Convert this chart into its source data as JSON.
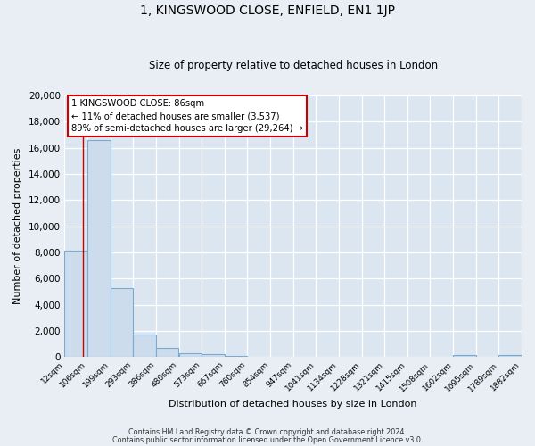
{
  "title": "1, KINGSWOOD CLOSE, ENFIELD, EN1 1JP",
  "subtitle": "Size of property relative to detached houses in London",
  "xlabel": "Distribution of detached houses by size in London",
  "ylabel": "Number of detached properties",
  "bar_color": "#ccdcec",
  "bar_edge_color": "#7baad0",
  "bar_left_edges": [
    12,
    106,
    199,
    293,
    386,
    480,
    573,
    667,
    760,
    854,
    947,
    1041,
    1134,
    1228,
    1321,
    1415,
    1508,
    1602,
    1695,
    1789
  ],
  "bar_heights": [
    8100,
    16600,
    5300,
    1750,
    700,
    280,
    200,
    100,
    0,
    0,
    0,
    0,
    0,
    0,
    0,
    0,
    0,
    120,
    0,
    120
  ],
  "bin_width": 93,
  "x_tick_labels": [
    "12sqm",
    "106sqm",
    "199sqm",
    "293sqm",
    "386sqm",
    "480sqm",
    "573sqm",
    "667sqm",
    "760sqm",
    "854sqm",
    "947sqm",
    "1041sqm",
    "1134sqm",
    "1228sqm",
    "1321sqm",
    "1415sqm",
    "1508sqm",
    "1602sqm",
    "1695sqm",
    "1789sqm",
    "1882sqm"
  ],
  "ylim": [
    0,
    20000
  ],
  "yticks": [
    0,
    2000,
    4000,
    6000,
    8000,
    10000,
    12000,
    14000,
    16000,
    18000,
    20000
  ],
  "red_line_x": 86,
  "annotation_title": "1 KINGSWOOD CLOSE: 86sqm",
  "annotation_line1": "← 11% of detached houses are smaller (3,537)",
  "annotation_line2": "89% of semi-detached houses are larger (29,264) →",
  "footer_line1": "Contains HM Land Registry data © Crown copyright and database right 2024.",
  "footer_line2": "Contains public sector information licensed under the Open Government Licence v3.0.",
  "background_color": "#e8eef4",
  "plot_background_color": "#dce6f0",
  "grid_color": "#ffffff"
}
